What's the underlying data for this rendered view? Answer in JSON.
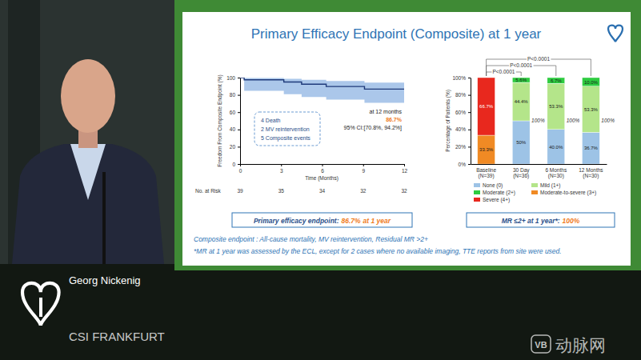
{
  "slide": {
    "title": "Primary Efficacy Endpoint (Composite) at 1 year",
    "efficacy_box": {
      "text": "Primary efficacy endpoint:",
      "highlight": "86.7%",
      "suffix": "at 1 year"
    },
    "mr_box": {
      "text": "MR ≤2+ at 1 year*:",
      "highlight": "100%"
    },
    "footnotes": [
      "Composite endpoint : All-cause mortality, MV reintervention, Residual MR >2+",
      "*MR at 1 year was assessed by the ECL, except for 2 cases where no available imaging, TTE reports from site were used."
    ]
  },
  "speaker": {
    "name": "Georg Nickenig",
    "organization": "CSI FRANKFURT"
  },
  "watermark": {
    "logo": "VB",
    "text": "动脉网"
  },
  "chart_data": [
    {
      "type": "line",
      "x": [
        0,
        0.3,
        3.2,
        4.5,
        6.3,
        9.1,
        12
      ],
      "series": [
        {
          "color": "#1f3a7a",
          "values": [
            100,
            97.4,
            94.9,
            92.3,
            89.7,
            86.7,
            86.7
          ],
          "ci_lower": [
            100,
            84.7,
            80.8,
            77.5,
            74.5,
            70.8,
            70.8
          ],
          "ci_upper": [
            100,
            99.6,
            98.7,
            97.4,
            96.0,
            94.2,
            94.2
          ]
        }
      ],
      "xlim": [
        0,
        12
      ],
      "xticks": [
        0,
        3,
        6,
        9,
        12
      ],
      "ylim": [
        0,
        100
      ],
      "yticks": [
        0,
        20,
        40,
        60,
        80,
        100
      ],
      "x_label": "Time (Months)",
      "y_label": "Freedom From Composite Endpoint (%)",
      "annotations": {
        "events": [
          "4 Death",
          "2 MV reintervention",
          "5 Composite events"
        ],
        "timepoint": "at 12 months",
        "estimate": "86.7%",
        "ci": "95% CI:[70.8%, 94.2%]"
      },
      "risk_table": {
        "label": "No. at Risk",
        "x": [
          0,
          3,
          6,
          9,
          12
        ],
        "values": [
          39,
          35,
          34,
          32,
          32
        ]
      }
    },
    {
      "type": "bar",
      "stacked": true,
      "data_labels": true,
      "legend": "bottom",
      "categories": [
        "Baseline (N=39)",
        "30 Day (N=36)",
        "6 Months (N=30)",
        "12 Months (N=30)"
      ],
      "series": [
        {
          "name": "None (0)",
          "color": "#9dc3e6",
          "values": [
            null,
            50,
            40.0,
            36.7
          ],
          "value_labels": [
            null,
            "50%",
            "40.0%",
            "36.7%"
          ]
        },
        {
          "name": "Mild (1+)",
          "color": "#b4e58a",
          "values": [
            null,
            44.4,
            53.3,
            53.3
          ],
          "value_labels": [
            null,
            "44.4%",
            "53.3%",
            "53.3%"
          ]
        },
        {
          "name": "Moderate (2+)",
          "color": "#2ecc40",
          "values": [
            null,
            5.6,
            6.7,
            10.0
          ],
          "value_labels": [
            null,
            "5.6%",
            "6.7%",
            "10.0%"
          ]
        },
        {
          "name": "Moderate-to-severe (3+)",
          "color": "#f08a24",
          "values": [
            33.3,
            null,
            null,
            null
          ],
          "value_labels": [
            "33.3%",
            null,
            null,
            null
          ]
        },
        {
          "name": "Severe (4+)",
          "color": "#e8281e",
          "values": [
            66.7,
            null,
            null,
            null
          ],
          "value_labels": [
            "66.7%",
            null,
            null,
            null
          ]
        }
      ],
      "ylim": [
        0,
        100
      ],
      "yticks": [
        {
          "value": 0,
          "label": "0%"
        },
        {
          "value": 20,
          "label": "20%"
        },
        {
          "value": 40,
          "label": "40%"
        },
        {
          "value": 60,
          "label": "60%"
        },
        {
          "value": 80,
          "label": "80%"
        },
        {
          "value": 100,
          "label": "100%"
        }
      ],
      "y_label": "Percentage of Patients (%)",
      "total_labels": [
        null,
        "100%",
        "100%",
        "100%"
      ],
      "comparisons": [
        {
          "categories": [
            "Baseline (N=39)",
            "30 Day (N=36)"
          ],
          "label": "P<0.0001"
        },
        {
          "categories": [
            "Baseline (N=39)",
            "6 Months (N=30)"
          ],
          "label": "P<0.0001"
        },
        {
          "categories": [
            "Baseline (N=39)",
            "12 Months (N=30)"
          ],
          "label": "P<0.0001"
        }
      ]
    }
  ]
}
